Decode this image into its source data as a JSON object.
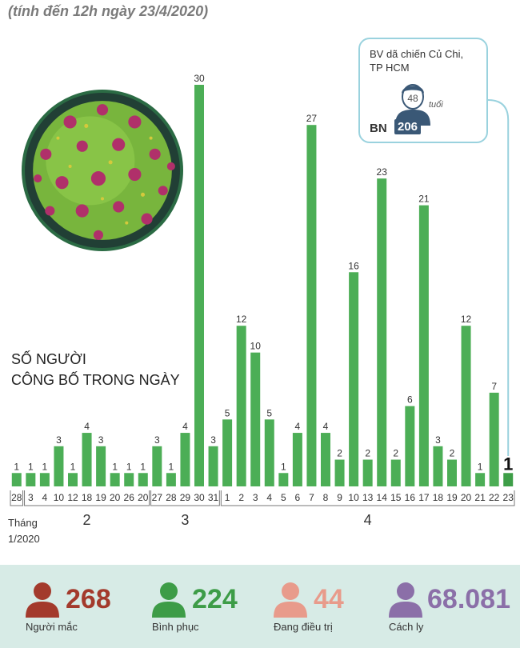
{
  "subtitle": "(tính đến 12h ngày 23/4/2020)",
  "heading": {
    "line1": "SỐ NGƯỜI",
    "line2": "CÔNG BỐ TRONG NGÀY"
  },
  "callout": {
    "hospital_line1": "BV dã chiến Củ Chi,",
    "hospital_line2": "TP HCM",
    "age": "48",
    "age_unit": "tuổi",
    "patient_label": "BN",
    "patient_number": "206"
  },
  "colors": {
    "bar": "#4cae56",
    "bar_last": "#3e9e48",
    "stat_cases": "#a33a2c",
    "stat_recovered": "#3d9c47",
    "stat_treating": "#e89b8b",
    "stat_isolated": "#8b6fa8",
    "callout_border": "#9ad2de"
  },
  "chart_data": {
    "type": "bar",
    "title": "SỐ NGƯỜI CÔNG BỐ TRONG NGÀY",
    "subtitle": "(tính đến 12h ngày 23/4/2020)",
    "xlabel": "",
    "ylabel": "",
    "ylim": [
      0,
      30
    ],
    "categories": [
      "28",
      "3",
      "4",
      "10",
      "12",
      "18",
      "19",
      "20",
      "26",
      "20",
      "27",
      "28",
      "29",
      "30",
      "31",
      "1",
      "2",
      "3",
      "4",
      "5",
      "6",
      "7",
      "8",
      "9",
      "10",
      "13",
      "14",
      "15",
      "16",
      "17",
      "18",
      "19",
      "20",
      "21",
      "22",
      "23"
    ],
    "values": [
      1,
      1,
      1,
      3,
      1,
      4,
      3,
      1,
      1,
      1,
      3,
      1,
      4,
      30,
      3,
      5,
      12,
      10,
      5,
      1,
      4,
      27,
      4,
      2,
      16,
      2,
      23,
      2,
      6,
      21,
      3,
      2,
      12,
      1,
      7,
      1
    ],
    "month_groups": [
      {
        "label": "Tháng",
        "label2": "1/2020",
        "start": 0,
        "end": 0
      },
      {
        "label": "2",
        "start": 1,
        "end": 9
      },
      {
        "label": "3",
        "start": 10,
        "end": 14
      },
      {
        "label": "4",
        "start": 15,
        "end": 35
      }
    ]
  },
  "stats": [
    {
      "value": "268",
      "label": "Người mắc"
    },
    {
      "value": "224",
      "label": "Bình phục"
    },
    {
      "value": "44",
      "label": "Đang điều trị"
    },
    {
      "value": "68.081",
      "label": "Cách ly"
    }
  ]
}
